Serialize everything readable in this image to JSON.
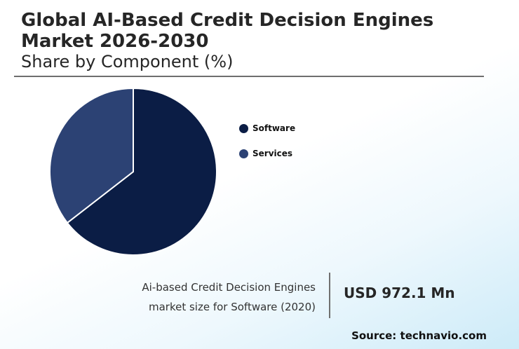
{
  "header": {
    "title": "Global AI-Based Credit Decision Engines Market 2026-2030",
    "subtitle": "Share by Component (%)"
  },
  "chart_data": {
    "type": "pie",
    "categories": [
      "Software",
      "Services"
    ],
    "values": [
      64.5,
      35.5
    ],
    "colors": [
      "#0b1d45",
      "#2c4274"
    ],
    "legend": "right"
  },
  "stat": {
    "label_line1": "Ai-based Credit Decision Engines",
    "label_line2": "market size for Software (2020)",
    "value": "USD 972.1 Mn"
  },
  "source": "Source: technavio.com"
}
